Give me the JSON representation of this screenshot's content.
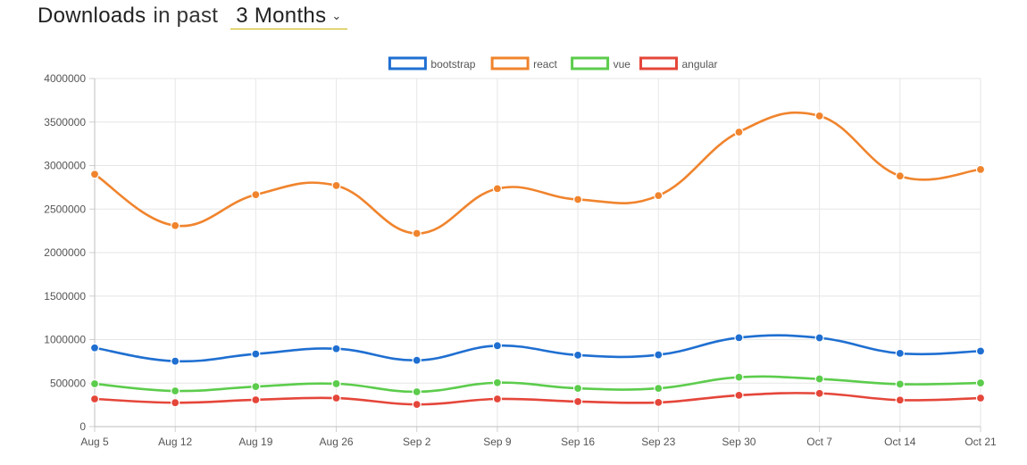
{
  "header": {
    "title": "Downloads",
    "mid": "in past",
    "period": "3 Months",
    "chevron_icon": "chevron-down-icon"
  },
  "chart_data": {
    "type": "line",
    "x": [
      "Aug 5",
      "Aug 12",
      "Aug 19",
      "Aug 26",
      "Sep 2",
      "Sep 9",
      "Sep 16",
      "Sep 23",
      "Sep 30",
      "Oct 7",
      "Oct 14",
      "Oct 21"
    ],
    "ylim": [
      0,
      4000000
    ],
    "yticks": [
      "0",
      "500000",
      "1000000",
      "1500000",
      "2000000",
      "2500000",
      "3000000",
      "3500000",
      "4000000"
    ],
    "grid": true,
    "legend_position": "top-center",
    "series": [
      {
        "name": "bootstrap",
        "color": "#1f6fd1",
        "values": [
          905000,
          752000,
          835000,
          895000,
          762000,
          930000,
          822000,
          825000,
          1022000,
          1020000,
          842000,
          868000
        ]
      },
      {
        "name": "react",
        "color": "#f0842d",
        "values": [
          2900000,
          2310000,
          2665000,
          2770000,
          2220000,
          2735000,
          2610000,
          2655000,
          3385000,
          3570000,
          2880000,
          2955000
        ]
      },
      {
        "name": "vue",
        "color": "#5ccc4c",
        "values": [
          492000,
          410000,
          460000,
          493000,
          400000,
          505000,
          440000,
          440000,
          568000,
          548000,
          488000,
          502000
        ]
      },
      {
        "name": "angular",
        "color": "#e5463a",
        "values": [
          318000,
          275000,
          308000,
          328000,
          255000,
          318000,
          288000,
          278000,
          360000,
          382000,
          305000,
          328000
        ]
      }
    ]
  }
}
